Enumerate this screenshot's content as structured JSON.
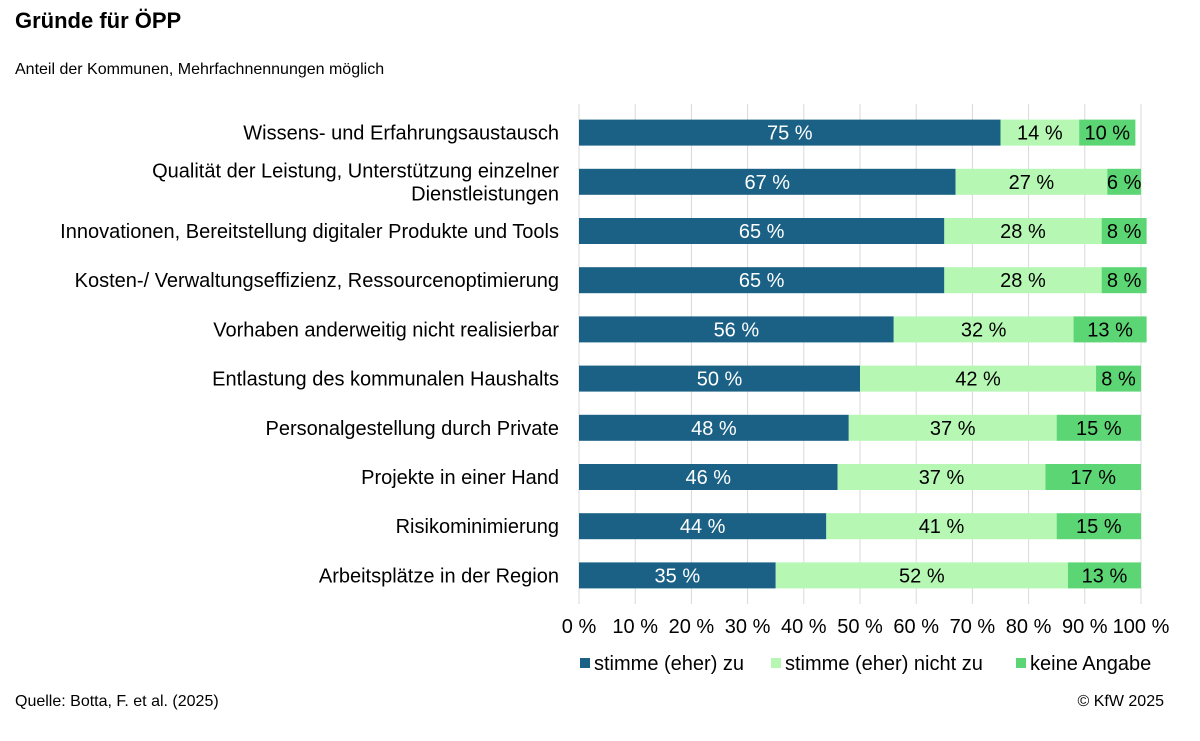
{
  "header": {
    "title": "Gründe für ÖPP",
    "subtitle": "Anteil der Kommunen, Mehrfachnennungen möglich"
  },
  "footer": {
    "source": "Quelle: Botta, F. et al. (2025)",
    "copyright": "© KfW 2025"
  },
  "chart_data": {
    "type": "bar",
    "orientation": "horizontal",
    "stacked": "percent",
    "title": "Gründe für ÖPP",
    "subtitle": "Anteil der Kommunen, Mehrfachnennungen möglich",
    "categories": [
      [
        "Wissens- und Erfahrungsaustausch"
      ],
      [
        "Qualität der Leistung, Unterstützung einzelner",
        "Dienstleistungen"
      ],
      [
        "Innovationen, Bereitstellung digitaler Produkte und Tools"
      ],
      [
        "Kosten-/ Verwaltungseffizienz, Ressourcenoptimierung"
      ],
      [
        "Vorhaben anderweitig nicht realisierbar"
      ],
      [
        "Entlastung des kommunalen Haushalts"
      ],
      [
        "Personalgestellung durch Private"
      ],
      [
        "Projekte in einer Hand"
      ],
      [
        "Risikominimierung "
      ],
      [
        "Arbeitsplätze in der Region"
      ]
    ],
    "series": [
      {
        "name": "stimme (eher) zu",
        "color": "#1a6185",
        "label_color": "#ffffff",
        "values": [
          75,
          67,
          65,
          65,
          56,
          50,
          48,
          46,
          44,
          35
        ],
        "labels": [
          "75 %",
          "67 %",
          "65 %",
          "65 %",
          "56 %",
          "50 %",
          "48 %",
          "46 %",
          "44 %",
          "35 %"
        ]
      },
      {
        "name": "stimme (eher) nicht zu",
        "color": "#b5f7b3",
        "label_color": "#000000",
        "values": [
          14,
          27,
          28,
          28,
          32,
          42,
          37,
          37,
          41,
          52
        ],
        "labels": [
          "14 %",
          "27 %",
          "28 %",
          "28 %",
          "32 %",
          "42 %",
          "37 %",
          "37 %",
          "41 %",
          "52 %"
        ]
      },
      {
        "name": "keine Angabe",
        "color": "#5cd674",
        "label_color": "#000000",
        "values": [
          10,
          6,
          8,
          8,
          13,
          8,
          15,
          17,
          15,
          13
        ],
        "labels": [
          "10 %",
          "6 %",
          "8 %",
          "8 %",
          "13 %",
          "8 %",
          "15 %",
          "17 %",
          "15 %",
          "13 %"
        ]
      }
    ],
    "xlim": [
      0,
      100
    ],
    "xticks": [
      "0 %",
      "10 %",
      "20 %",
      "30 %",
      "40 %",
      "50 %",
      "60 %",
      "70 %",
      "80 %",
      "90 %",
      "100 %"
    ],
    "grid": true,
    "grid_color": "#d9d9d9",
    "legend_position": "bottom-right"
  }
}
